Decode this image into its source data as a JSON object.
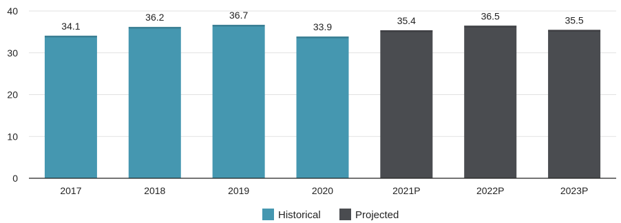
{
  "chart_data": {
    "type": "bar",
    "categories": [
      "2017",
      "2018",
      "2019",
      "2020",
      "2021P",
      "2022P",
      "2023P"
    ],
    "values": [
      34.1,
      36.2,
      36.7,
      33.9,
      35.4,
      36.5,
      35.5
    ],
    "groups": [
      "historical",
      "historical",
      "historical",
      "historical",
      "projected",
      "projected",
      "projected"
    ],
    "ylim": [
      0,
      40
    ],
    "yticks": [
      0,
      10,
      20,
      30,
      40
    ],
    "grid": true,
    "legend_position": "bottom-center",
    "legend": [
      {
        "key": "historical",
        "label": "Historical",
        "color": "#4597b0"
      },
      {
        "key": "projected",
        "label": "Projected",
        "color": "#4a4c50"
      }
    ]
  }
}
